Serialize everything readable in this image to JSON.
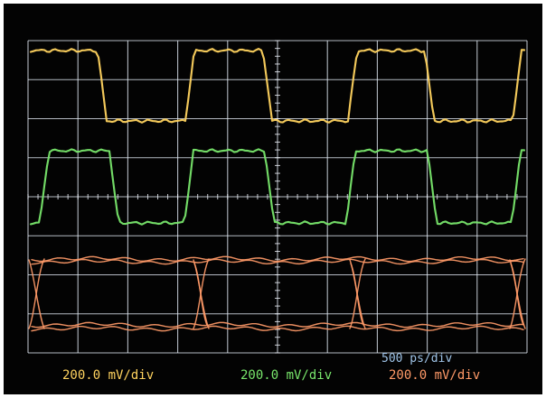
{
  "scope": {
    "background_color": "#030303",
    "grid_color": "#e6edf7",
    "divisions": {
      "horizontal": 10,
      "vertical": 8
    },
    "timebase": {
      "label": "500  ps/div"
    },
    "channels": [
      {
        "id": "yellow",
        "color": "#ffd35f",
        "scale_label": "200.0 mV/div"
      },
      {
        "id": "green",
        "color": "#78e66b",
        "scale_label": "200.0 mV/div"
      },
      {
        "id": "orange",
        "color": "#ff9a68",
        "scale_label": "200.0 mV/div"
      }
    ]
  }
}
